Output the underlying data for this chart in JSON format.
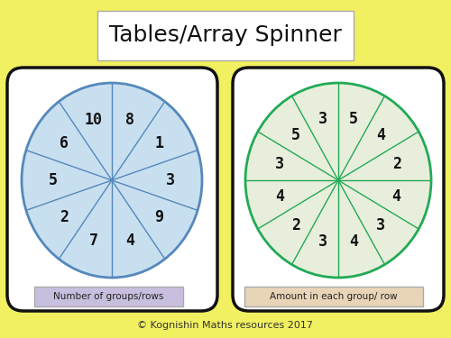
{
  "title": "Tables/Array Spinner",
  "background_color": "#f0f060",
  "title_box_color": "#ffffff",
  "title_fontsize": 18,
  "left_spinner": {
    "labels": [
      "8",
      "1",
      "3",
      "9",
      "4",
      "7",
      "2",
      "5",
      "6",
      "10"
    ],
    "n_slices": 10,
    "fill_color": "#c8dff0",
    "line_color": "#5588bb",
    "label_color": "#111111",
    "caption": "Number of groups/rows",
    "caption_bg": "#c8bedd"
  },
  "right_spinner": {
    "labels": [
      "5",
      "4",
      "2",
      "4",
      "3",
      "4",
      "3",
      "2",
      "4",
      "3",
      "5",
      "3"
    ],
    "n_slices": 12,
    "fill_color": "#e8eedc",
    "line_color": "#22aa55",
    "label_color": "#111111",
    "caption": "Amount in each group/ row",
    "caption_bg": "#e8d5b8"
  },
  "card_color": "#ffffff",
  "card_edge_color": "#111111",
  "footer": "© Kognishin Maths resources 2017",
  "footer_fontsize": 8
}
